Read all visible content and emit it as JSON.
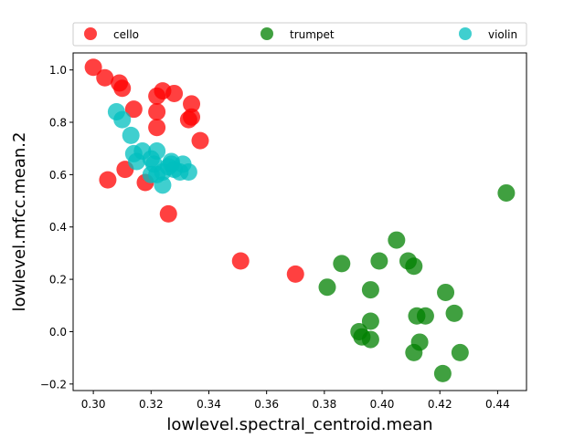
{
  "chart_data": {
    "type": "scatter",
    "title": "",
    "xlabel": "lowlevel.spectral_centroid.mean",
    "ylabel": "lowlevel.mfcc.mean.2",
    "xlim": [
      0.293,
      0.45
    ],
    "ylim": [
      -0.225,
      1.065
    ],
    "xticks": [
      "0.30",
      "0.32",
      "0.34",
      "0.36",
      "0.38",
      "0.40",
      "0.42",
      "0.44"
    ],
    "yticks": [
      "−0.2",
      "0.0",
      "0.2",
      "0.4",
      "0.6",
      "0.8",
      "1.0"
    ],
    "xtick_values": [
      0.3,
      0.32,
      0.34,
      0.36,
      0.38,
      0.4,
      0.42,
      0.44
    ],
    "ytick_values": [
      -0.2,
      0.0,
      0.2,
      0.4,
      0.6,
      0.8,
      1.0
    ],
    "grid": false,
    "legend": "top, horizontal",
    "series": [
      {
        "name": "cello",
        "color": "#ff0000",
        "points": [
          [
            0.3,
            1.01
          ],
          [
            0.304,
            0.97
          ],
          [
            0.309,
            0.95
          ],
          [
            0.31,
            0.93
          ],
          [
            0.314,
            0.85
          ],
          [
            0.322,
            0.9
          ],
          [
            0.324,
            0.92
          ],
          [
            0.328,
            0.91
          ],
          [
            0.334,
            0.87
          ],
          [
            0.322,
            0.84
          ],
          [
            0.333,
            0.81
          ],
          [
            0.334,
            0.82
          ],
          [
            0.322,
            0.78
          ],
          [
            0.337,
            0.73
          ],
          [
            0.311,
            0.62
          ],
          [
            0.305,
            0.58
          ],
          [
            0.318,
            0.57
          ],
          [
            0.326,
            0.45
          ],
          [
            0.351,
            0.27
          ],
          [
            0.37,
            0.22
          ]
        ]
      },
      {
        "name": "trumpet",
        "color": "#008000",
        "points": [
          [
            0.443,
            0.53
          ],
          [
            0.405,
            0.35
          ],
          [
            0.399,
            0.27
          ],
          [
            0.386,
            0.26
          ],
          [
            0.409,
            0.27
          ],
          [
            0.411,
            0.25
          ],
          [
            0.381,
            0.17
          ],
          [
            0.396,
            0.16
          ],
          [
            0.422,
            0.15
          ],
          [
            0.425,
            0.07
          ],
          [
            0.412,
            0.06
          ],
          [
            0.415,
            0.06
          ],
          [
            0.396,
            0.04
          ],
          [
            0.392,
            0.0
          ],
          [
            0.393,
            -0.02
          ],
          [
            0.396,
            -0.03
          ],
          [
            0.413,
            -0.04
          ],
          [
            0.411,
            -0.08
          ],
          [
            0.427,
            -0.08
          ],
          [
            0.421,
            -0.16
          ]
        ]
      },
      {
        "name": "violin",
        "color": "#00bfbf",
        "points": [
          [
            0.308,
            0.84
          ],
          [
            0.31,
            0.81
          ],
          [
            0.313,
            0.75
          ],
          [
            0.314,
            0.68
          ],
          [
            0.317,
            0.69
          ],
          [
            0.315,
            0.65
          ],
          [
            0.322,
            0.69
          ],
          [
            0.32,
            0.66
          ],
          [
            0.321,
            0.64
          ],
          [
            0.32,
            0.6
          ],
          [
            0.324,
            0.61
          ],
          [
            0.327,
            0.65
          ],
          [
            0.326,
            0.63
          ],
          [
            0.328,
            0.62
          ],
          [
            0.33,
            0.61
          ],
          [
            0.331,
            0.64
          ],
          [
            0.333,
            0.61
          ],
          [
            0.322,
            0.6
          ],
          [
            0.324,
            0.56
          ],
          [
            0.327,
            0.64
          ]
        ]
      }
    ]
  }
}
